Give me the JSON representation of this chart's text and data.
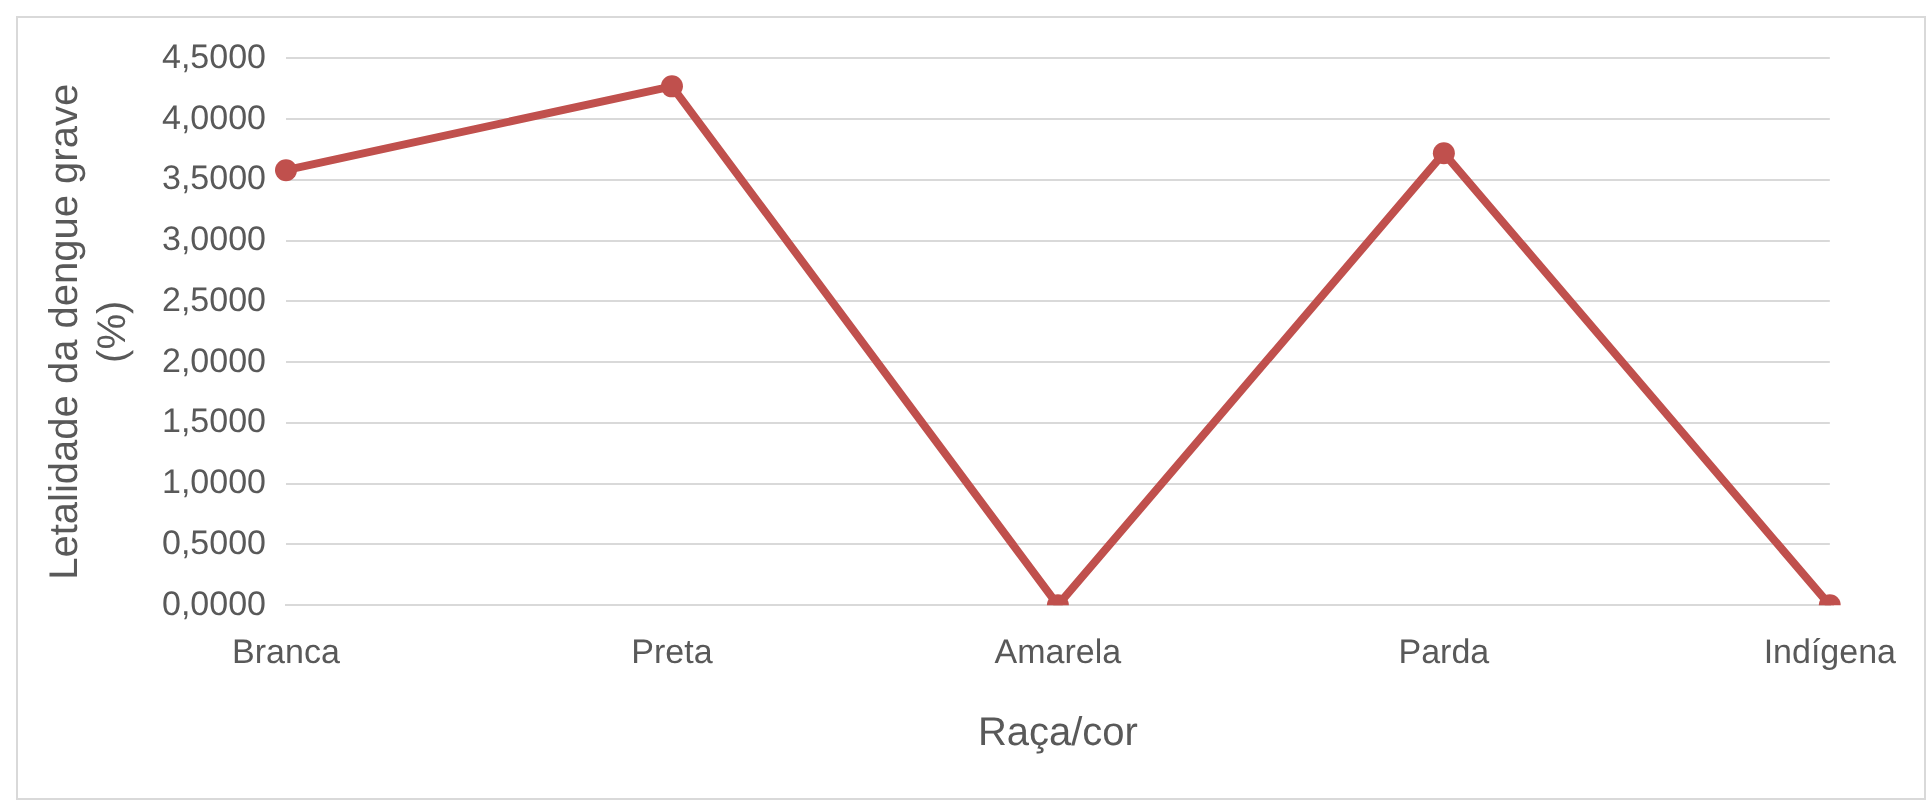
{
  "chart_data": {
    "type": "line",
    "xlabel": "Raça/cor",
    "ylabel": "Letalidade da dengue grave\n(%)",
    "categories": [
      "Branca",
      "Preta",
      "Amarela",
      "Parda",
      "Indígena"
    ],
    "series": [
      {
        "color": "#c0504d",
        "values": [
          3.58,
          4.27,
          0,
          3.72,
          0
        ]
      }
    ],
    "ylim": [
      0,
      4.5
    ],
    "yticks": [
      {
        "value": 0,
        "label": "0,0000"
      },
      {
        "value": 0.5,
        "label": "0,5000"
      },
      {
        "value": 1,
        "label": "1,0000"
      },
      {
        "value": 1.5,
        "label": "1,5000"
      },
      {
        "value": 2,
        "label": "2,0000"
      },
      {
        "value": 2.5,
        "label": "2,5000"
      },
      {
        "value": 3,
        "label": "3,0000"
      },
      {
        "value": 3.5,
        "label": "3,5000"
      },
      {
        "value": 4,
        "label": "4,0000"
      },
      {
        "value": 4.5,
        "label": "4,5000"
      }
    ],
    "grid": "y",
    "legend": false,
    "marker": "circle",
    "line_style": "solid"
  }
}
